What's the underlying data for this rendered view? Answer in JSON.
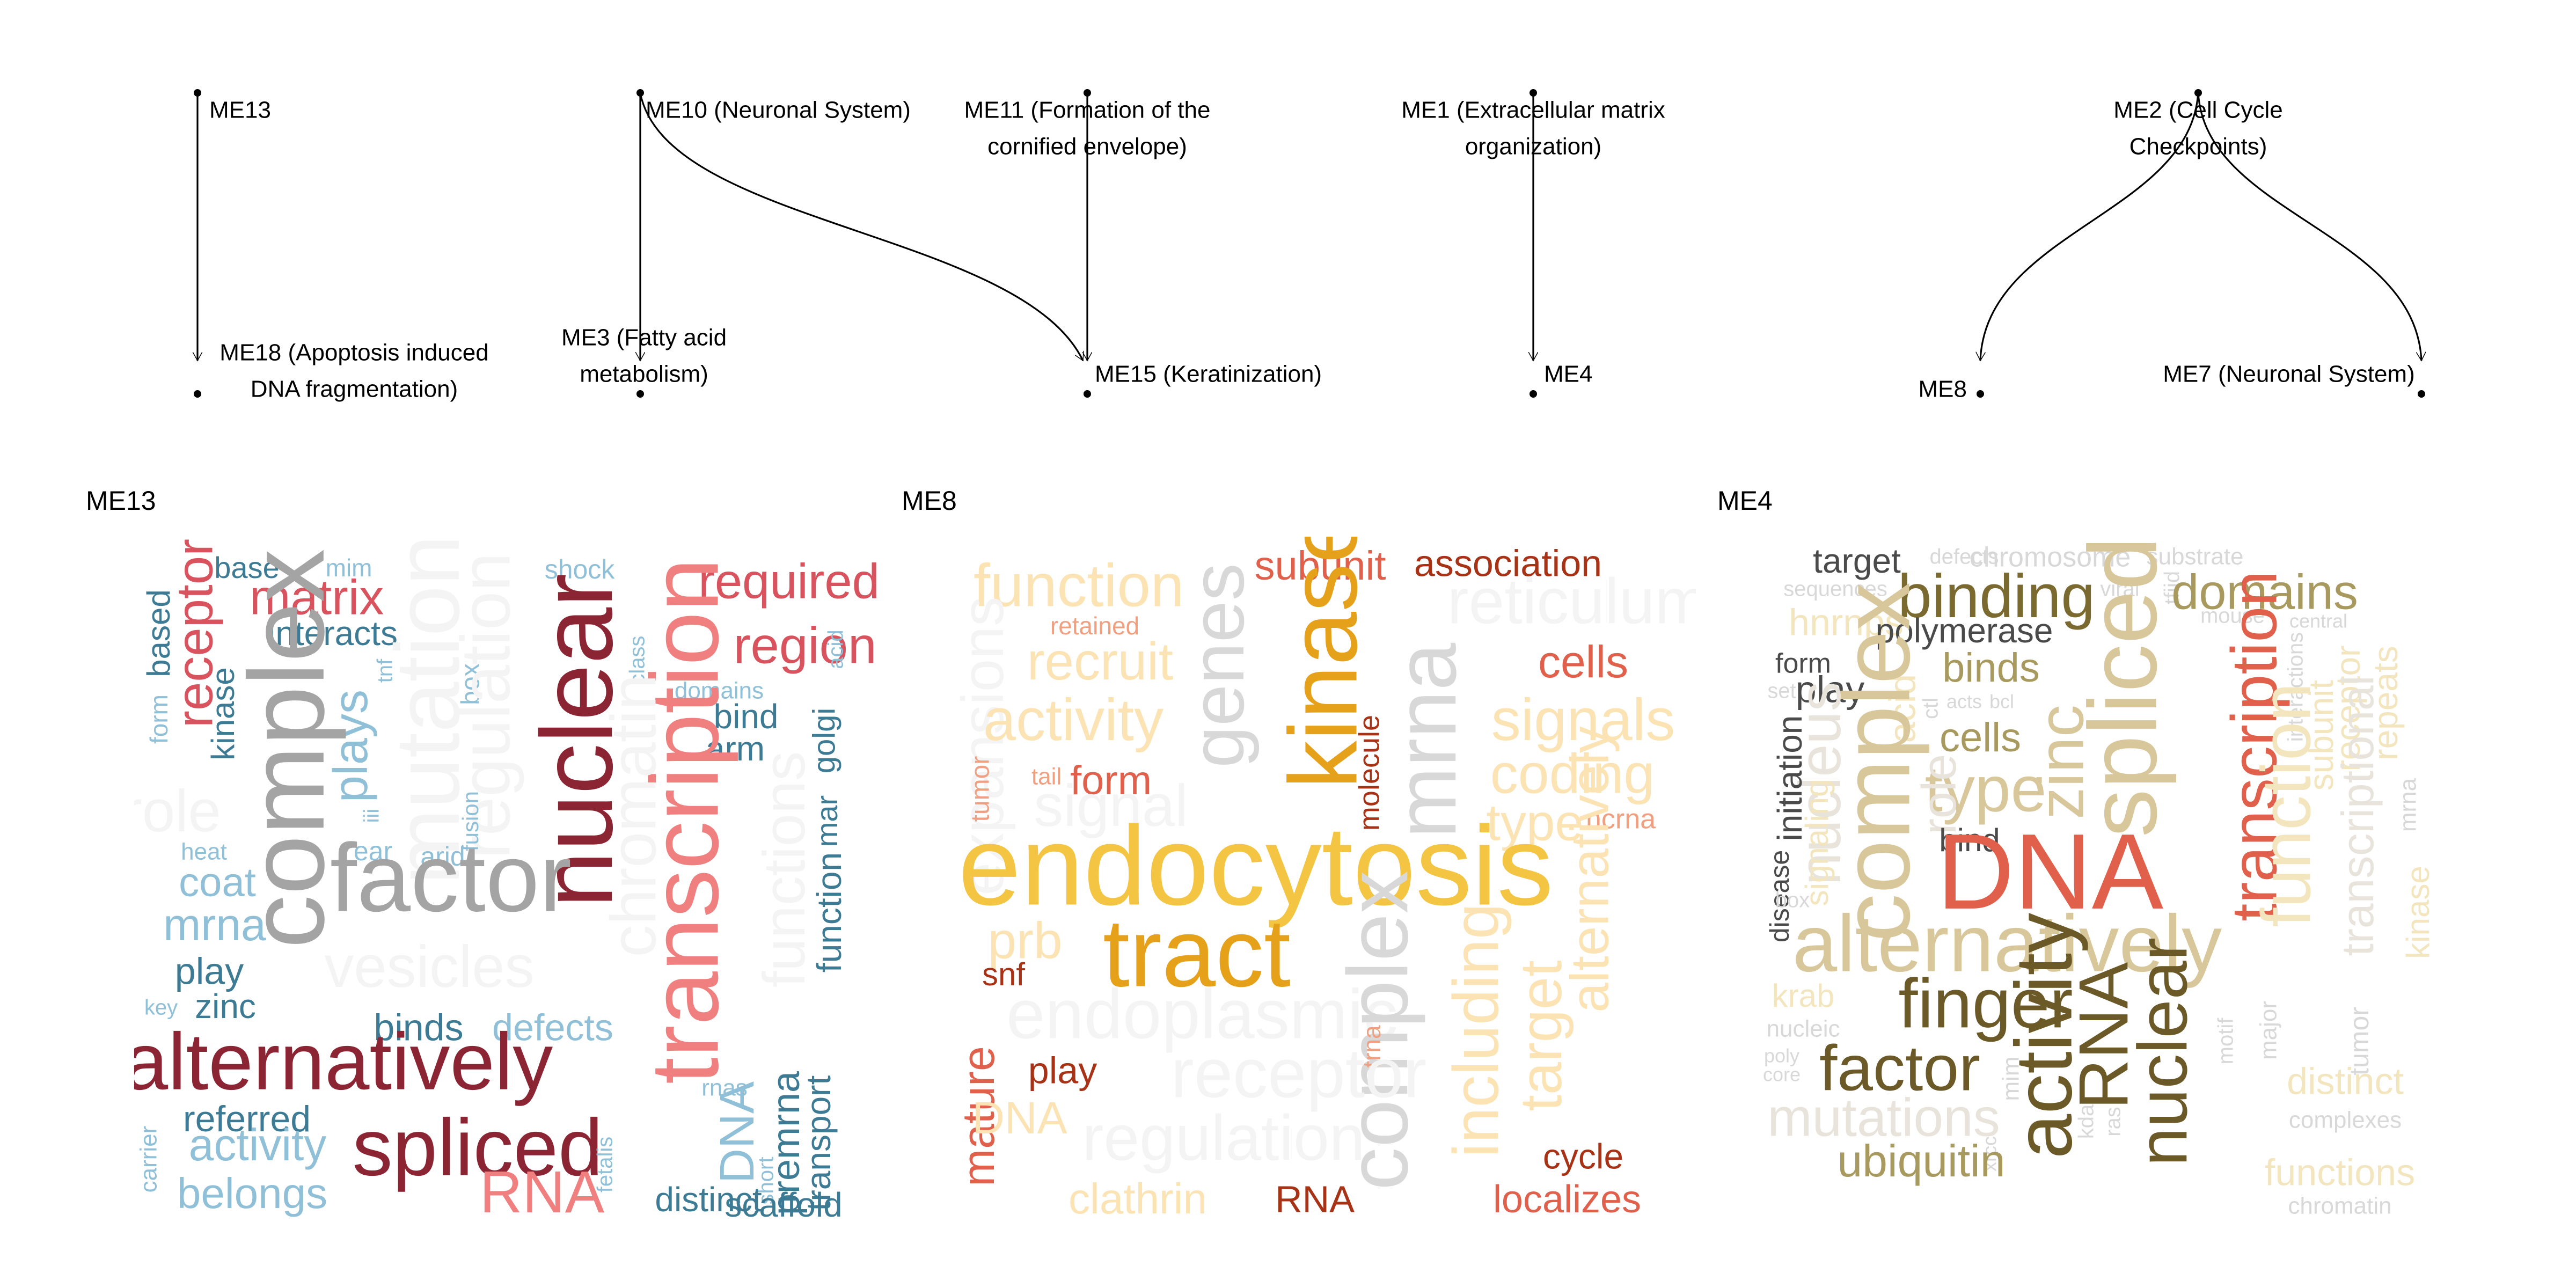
{
  "graph": {
    "nodes": [
      {
        "id": "ME13",
        "lines": [
          "ME13"
        ]
      },
      {
        "id": "ME10",
        "lines": [
          "ME10 (Neuronal System)"
        ]
      },
      {
        "id": "ME11",
        "lines": [
          "ME11 (Formation of the",
          "cornified envelope)"
        ]
      },
      {
        "id": "ME1",
        "lines": [
          "ME1 (Extracellular matrix",
          "organization)"
        ]
      },
      {
        "id": "ME2",
        "lines": [
          "ME2 (Cell Cycle",
          "Checkpoints)"
        ]
      },
      {
        "id": "ME18",
        "lines": [
          "ME18 (Apoptosis induced",
          "DNA fragmentation)"
        ]
      },
      {
        "id": "ME3",
        "lines": [
          "ME3 (Fatty acid",
          "metabolism)"
        ]
      },
      {
        "id": "ME15",
        "lines": [
          "ME15 (Keratinization)"
        ]
      },
      {
        "id": "ME4",
        "lines": [
          "ME4"
        ]
      },
      {
        "id": "ME8",
        "lines": [
          "ME8"
        ]
      },
      {
        "id": "ME7",
        "lines": [
          "ME7 (Neuronal System)"
        ]
      }
    ],
    "edges": [
      {
        "from": "ME13",
        "to": "ME18"
      },
      {
        "from": "ME10",
        "to": "ME3"
      },
      {
        "from": "ME10",
        "to": "ME15"
      },
      {
        "from": "ME11",
        "to": "ME15"
      },
      {
        "from": "ME1",
        "to": "ME4"
      },
      {
        "from": "ME2",
        "to": "ME8"
      },
      {
        "from": "ME2",
        "to": "ME7"
      }
    ]
  },
  "panels": [
    {
      "title": "ME13",
      "words": [
        {
          "t": "base",
          "c": "#3d7a94"
        },
        {
          "t": "mim",
          "c": "#8fc0d8"
        },
        {
          "t": "shock",
          "c": "#8fc0d8"
        },
        {
          "t": "required",
          "c": "#d9535f"
        },
        {
          "t": "based",
          "c": "#3d7a94"
        },
        {
          "t": "receptor",
          "c": "#d9535f"
        },
        {
          "t": "matrix",
          "c": "#d9535f"
        },
        {
          "t": "region",
          "c": "#d9535f"
        },
        {
          "t": "interacts",
          "c": "#3d7a94"
        },
        {
          "t": "class",
          "c": "#8fc0d8"
        },
        {
          "t": "acid",
          "c": "#8fc0d8"
        },
        {
          "t": "mutations",
          "c": "#f4f4f4"
        },
        {
          "t": "domains",
          "c": "#8fc0d8"
        },
        {
          "t": "tnf",
          "c": "#8fc0d8"
        },
        {
          "t": "box",
          "c": "#8fc0d8"
        },
        {
          "t": "bind",
          "c": "#3d7a94"
        },
        {
          "t": "form",
          "c": "#8fc0d8"
        },
        {
          "t": "kinase",
          "c": "#3d7a94"
        },
        {
          "t": "plays",
          "c": "#8fc0d8"
        },
        {
          "t": "complex",
          "c": "#a4a4a4"
        },
        {
          "t": "regulation",
          "c": "#f4f4f4"
        },
        {
          "t": "nuclear",
          "c": "#8b2533"
        },
        {
          "t": "arm",
          "c": "#3d7a94"
        },
        {
          "t": "golgi",
          "c": "#3d7a94"
        },
        {
          "t": "role",
          "c": "#f4f4f4"
        },
        {
          "t": "fusion",
          "c": "#8fc0d8"
        },
        {
          "t": "iii",
          "c": "#8fc0d8"
        },
        {
          "t": "transcription",
          "c": "#f08080"
        },
        {
          "t": "chromatin",
          "c": "#f4f4f4"
        },
        {
          "t": "mar",
          "c": "#3d7a94"
        },
        {
          "t": "heat",
          "c": "#8fc0d8"
        },
        {
          "t": "ear",
          "c": "#8fc0d8"
        },
        {
          "t": "arid",
          "c": "#8fc0d8"
        },
        {
          "t": "coat",
          "c": "#8fc0d8"
        },
        {
          "t": "factor",
          "c": "#a4a4a4"
        },
        {
          "t": "functions",
          "c": "#f4f4f4"
        },
        {
          "t": "mrna",
          "c": "#8fc0d8"
        },
        {
          "t": "function",
          "c": "#3d7a94"
        },
        {
          "t": "play",
          "c": "#3d7a94"
        },
        {
          "t": "vesicles",
          "c": "#f4f4f4"
        },
        {
          "t": "key",
          "c": "#8fc0d8"
        },
        {
          "t": "zinc",
          "c": "#3d7a94"
        },
        {
          "t": "binds",
          "c": "#3d7a94"
        },
        {
          "t": "defects",
          "c": "#8fc0d8"
        },
        {
          "t": "alternatively",
          "c": "#8b2533"
        },
        {
          "t": "rnas",
          "c": "#8fc0d8"
        },
        {
          "t": "referred",
          "c": "#3d7a94"
        },
        {
          "t": "DNA",
          "c": "#8fc0d8"
        },
        {
          "t": "premrna",
          "c": "#3d7a94"
        },
        {
          "t": "transport",
          "c": "#3d7a94"
        },
        {
          "t": "carrier",
          "c": "#8fc0d8"
        },
        {
          "t": "activity",
          "c": "#8fc0d8"
        },
        {
          "t": "spliced",
          "c": "#8b2533"
        },
        {
          "t": "fetalis",
          "c": "#8fc0d8"
        },
        {
          "t": "short",
          "c": "#8fc0d8"
        },
        {
          "t": "belongs",
          "c": "#8fc0d8"
        },
        {
          "t": "RNA",
          "c": "#f08080"
        },
        {
          "t": "distinct",
          "c": "#3d7a94"
        },
        {
          "t": "scaffold",
          "c": "#3d7a94"
        }
      ]
    },
    {
      "title": "ME8",
      "words": [
        {
          "t": "subunit",
          "c": "#e0604b"
        },
        {
          "t": "association",
          "c": "#a83215"
        },
        {
          "t": "function",
          "c": "#fbe3b4"
        },
        {
          "t": "reticulum",
          "c": "#f4f4f4"
        },
        {
          "t": "retained",
          "c": "#f0a080"
        },
        {
          "t": "recruit",
          "c": "#fbe3b4"
        },
        {
          "t": "genes",
          "c": "#d8d8d8"
        },
        {
          "t": "kinase",
          "c": "#e6a11a"
        },
        {
          "t": "cells",
          "c": "#e0604b"
        },
        {
          "t": "expansions",
          "c": "#f4f4f4"
        },
        {
          "t": "activity",
          "c": "#fbe3b4"
        },
        {
          "t": "mrna",
          "c": "#d8d8d8"
        },
        {
          "t": "signals",
          "c": "#fbe3b4"
        },
        {
          "t": "tumor",
          "c": "#f0a080"
        },
        {
          "t": "tail",
          "c": "#f0a080"
        },
        {
          "t": "form",
          "c": "#e0604b"
        },
        {
          "t": "molecule",
          "c": "#a83215"
        },
        {
          "t": "coding",
          "c": "#fbe3b4"
        },
        {
          "t": "signal",
          "c": "#f4f4f4"
        },
        {
          "t": "type",
          "c": "#fbe3b4"
        },
        {
          "t": "ncrna",
          "c": "#f0a080"
        },
        {
          "t": "endocytosis",
          "c": "#f4c542"
        },
        {
          "t": "alternatively",
          "c": "#fbe3b4"
        },
        {
          "t": "prb",
          "c": "#fbe3b4"
        },
        {
          "t": "tract",
          "c": "#e6a11a"
        },
        {
          "t": "snf",
          "c": "#a83215"
        },
        {
          "t": "endoplasmic",
          "c": "#f4f4f4"
        },
        {
          "t": "complex",
          "c": "#d8d8d8"
        },
        {
          "t": "including",
          "c": "#fbe3b4"
        },
        {
          "t": "target",
          "c": "#fbe3b4"
        },
        {
          "t": "trna",
          "c": "#f0a080"
        },
        {
          "t": "play",
          "c": "#a83215"
        },
        {
          "t": "receptor",
          "c": "#f4f4f4"
        },
        {
          "t": "mature",
          "c": "#e0604b"
        },
        {
          "t": "DNA",
          "c": "#fbe3b4"
        },
        {
          "t": "regulation",
          "c": "#f4f4f4"
        },
        {
          "t": "cycle",
          "c": "#a83215"
        },
        {
          "t": "clathrin",
          "c": "#fbe3b4"
        },
        {
          "t": "RNA",
          "c": "#a83215"
        },
        {
          "t": "localizes",
          "c": "#e0604b"
        }
      ]
    },
    {
      "title": "ME4",
      "words": [
        {
          "t": "target",
          "c": "#4a4a4a"
        },
        {
          "t": "defects",
          "c": "#d8d8d8"
        },
        {
          "t": "chromosome",
          "c": "#d8d8d8"
        },
        {
          "t": "substrate",
          "c": "#d8d8d8"
        },
        {
          "t": "sequences",
          "c": "#d8d8d8"
        },
        {
          "t": "binding",
          "c": "#7a6a30"
        },
        {
          "t": "viral",
          "c": "#d8d8d8"
        },
        {
          "t": "tfiid",
          "c": "#d8d8d8"
        },
        {
          "t": "domains",
          "c": "#a89a5e"
        },
        {
          "t": "hnrnps",
          "c": "#f3e5bd"
        },
        {
          "t": "mouse",
          "c": "#d8d8d8"
        },
        {
          "t": "central",
          "c": "#d8d8d8"
        },
        {
          "t": "polymerase",
          "c": "#4a4a4a"
        },
        {
          "t": "form",
          "c": "#4a4a4a"
        },
        {
          "t": "binds",
          "c": "#a89a5e"
        },
        {
          "t": "interactions",
          "c": "#d8d8d8"
        },
        {
          "t": "set",
          "c": "#d8d8d8"
        },
        {
          "t": "play",
          "c": "#4a4a4a"
        },
        {
          "t": "acid",
          "c": "#f3e5bd"
        },
        {
          "t": "ctl",
          "c": "#d8d8d8"
        },
        {
          "t": "acts",
          "c": "#d8d8d8"
        },
        {
          "t": "bcl",
          "c": "#d8d8d8"
        },
        {
          "t": "complex",
          "c": "#d8c79a"
        },
        {
          "t": "cells",
          "c": "#a89a5e"
        },
        {
          "t": "spliced",
          "c": "#d8c79a"
        },
        {
          "t": "transcription",
          "c": "#e0604b"
        },
        {
          "t": "receptor",
          "c": "#f3e5bd"
        },
        {
          "t": "repeats",
          "c": "#f3e5bd"
        },
        {
          "t": "subunit",
          "c": "#f3e5bd"
        },
        {
          "t": "nucleus",
          "c": "#e8e4dc"
        },
        {
          "t": "initiation",
          "c": "#4a4a4a"
        },
        {
          "t": "zinc",
          "c": "#d8c79a"
        },
        {
          "t": "type",
          "c": "#d8c79a"
        },
        {
          "t": "role",
          "c": "#e8e4dc"
        },
        {
          "t": "transcriptional",
          "c": "#e8e4dc"
        },
        {
          "t": "function",
          "c": "#f3e5bd"
        },
        {
          "t": "mrna",
          "c": "#d8d8d8"
        },
        {
          "t": "bind",
          "c": "#4a4a4a"
        },
        {
          "t": "signaling",
          "c": "#f3e5bd"
        },
        {
          "t": "disease",
          "c": "#4a4a4a"
        },
        {
          "t": "DNA",
          "c": "#e0604b"
        },
        {
          "t": "box",
          "c": "#d8d8d8"
        },
        {
          "t": "kinase",
          "c": "#f3e5bd"
        },
        {
          "t": "alternatively",
          "c": "#d8c79a"
        },
        {
          "t": "krab",
          "c": "#f3e5bd"
        },
        {
          "t": "finger",
          "c": "#6b5a28"
        },
        {
          "t": "activity",
          "c": "#6b5a28"
        },
        {
          "t": "RNA",
          "c": "#6b5a28"
        },
        {
          "t": "nucleic",
          "c": "#d8d8d8"
        },
        {
          "t": "motif",
          "c": "#d8d8d8"
        },
        {
          "t": "major",
          "c": "#d8d8d8"
        },
        {
          "t": "tumor",
          "c": "#d8d8d8"
        },
        {
          "t": "nuclear",
          "c": "#6b5a28"
        },
        {
          "t": "poly",
          "c": "#d8d8d8"
        },
        {
          "t": "core",
          "c": "#d8d8d8"
        },
        {
          "t": "factor",
          "c": "#6b5a28"
        },
        {
          "t": "mim",
          "c": "#d8d8d8"
        },
        {
          "t": "distinct",
          "c": "#f3e5bd"
        },
        {
          "t": "mutations",
          "c": "#e8e4dc"
        },
        {
          "t": "kda",
          "c": "#d8d8d8"
        },
        {
          "t": "ras",
          "c": "#d8d8d8"
        },
        {
          "t": "complexes",
          "c": "#d8d8d8"
        },
        {
          "t": "xrcc",
          "c": "#d8d8d8"
        },
        {
          "t": "ubiquitin",
          "c": "#a89a5e"
        },
        {
          "t": "functions",
          "c": "#f3e5bd"
        },
        {
          "t": "chromatin",
          "c": "#d8d8d8"
        }
      ]
    }
  ]
}
